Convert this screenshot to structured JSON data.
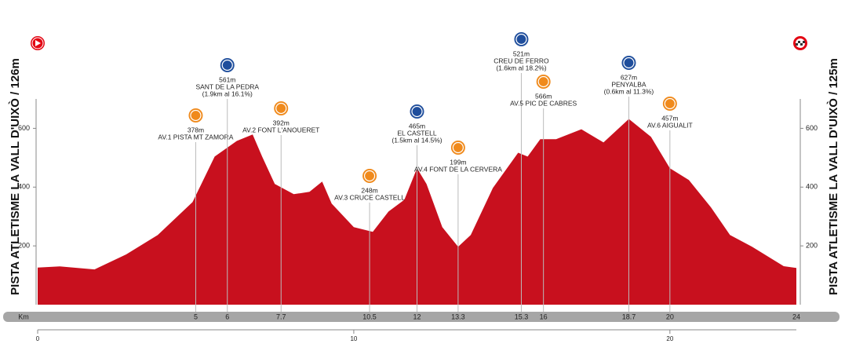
{
  "chart_data": {
    "type": "area",
    "left_title": "PISTA ATLETISME LA VALL D'UIXÒ / 126m",
    "right_title": "PISTA ATLETISME LA VALL D'UIXÒ / 125m",
    "x_label": "Km",
    "color": "#c8101e",
    "x": [
      0,
      0.7,
      1.8,
      2.8,
      3.8,
      4.9,
      5.6,
      6.3,
      6.8,
      7.1,
      7.5,
      8.1,
      8.6,
      9.0,
      9.3,
      10.0,
      10.6,
      11.1,
      11.6,
      12.0,
      12.3,
      12.8,
      13.3,
      13.7,
      14.4,
      15.2,
      15.5,
      15.9,
      16.4,
      17.2,
      17.9,
      18.7,
      19.4,
      20.0,
      20.6,
      21.3,
      21.9,
      22.6,
      23.6,
      24
    ],
    "values": [
      126,
      130,
      120,
      171,
      237,
      349,
      504,
      557,
      579,
      504,
      411,
      376,
      384,
      419,
      344,
      264,
      248,
      317,
      357,
      464,
      411,
      264,
      197,
      237,
      397,
      517,
      504,
      563,
      563,
      597,
      552,
      632,
      571,
      464,
      424,
      331,
      237,
      197,
      131,
      125
    ],
    "xlim": [
      0,
      24
    ],
    "ylim": [
      0,
      700
    ],
    "yticks": [
      200,
      400,
      600
    ],
    "xticks": [
      5,
      6,
      7.7,
      10.5,
      12,
      13.3,
      15.3,
      16,
      18.7,
      20,
      24
    ],
    "x2ticks": [
      0,
      10,
      20
    ],
    "markers": [
      {
        "km": 5,
        "lines": [
          "378m",
          "AV.1 PISTA MT ZAMORA"
        ]
      },
      {
        "km": 6,
        "lines": [
          "561m",
          "SANT DE LA PEDRA",
          "(1.9km al 16.1%)"
        ]
      },
      {
        "km": 7.7,
        "lines": [
          "392m",
          "AV.2 FONT L'ANOUERET"
        ]
      },
      {
        "km": 10.5,
        "lines": [
          "248m",
          "AV.3 CRUCE CASTELL"
        ]
      },
      {
        "km": 12,
        "lines": [
          "465m",
          "EL CASTELL",
          "(1.5km al 14.5%)"
        ]
      },
      {
        "km": 13.3,
        "lines": [
          "199m",
          "AV.4 FONT DE LA CERVERA"
        ]
      },
      {
        "km": 15.3,
        "lines": [
          "521m",
          "CREU DE FERRO",
          "(1.6km al 18.2%)"
        ]
      },
      {
        "km": 16,
        "lines": [
          "566m",
          "AV.5 PIC DE CABRES"
        ]
      },
      {
        "km": 18.7,
        "lines": [
          "627m",
          "PENYALBA",
          "(0.6km al 11.3%)"
        ]
      },
      {
        "km": 20,
        "lines": [
          "457m",
          "AV.6 AIGUALIT"
        ]
      }
    ]
  }
}
